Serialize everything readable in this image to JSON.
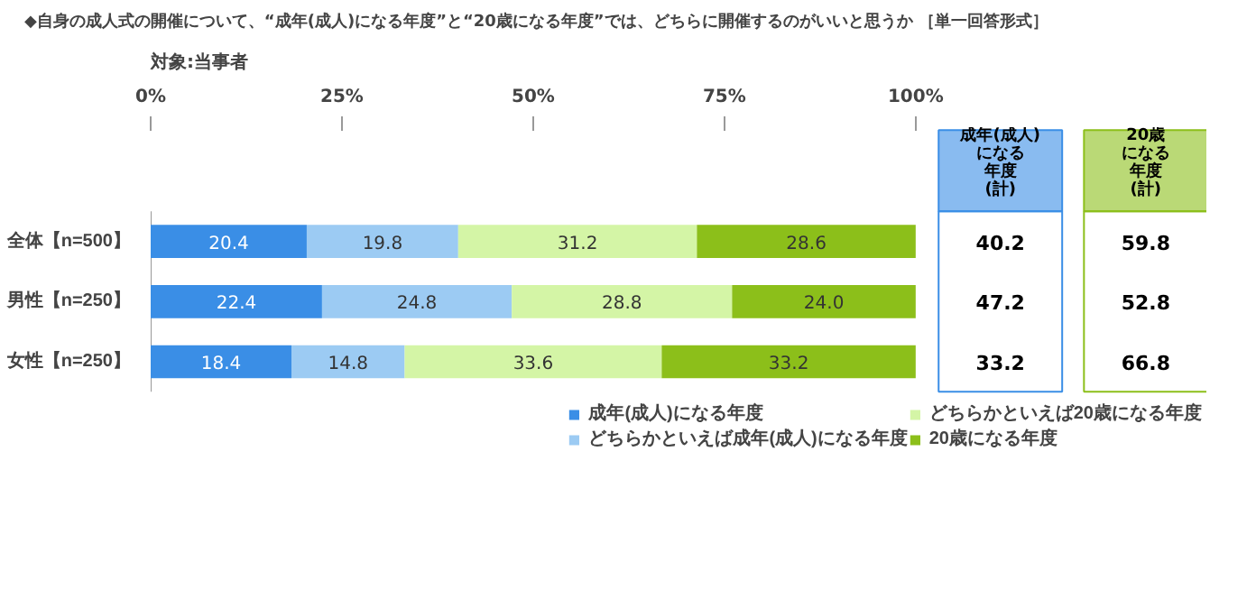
{
  "chart_data": {
    "type": "bar",
    "orientation": "horizontal",
    "stacked": true,
    "title": "◆自身の成人式の開催について、“成年(成人)になる年度”と“20歳になる年度”では、どちらに開催するのがいいと思うか ［単一回答形式］",
    "subtitle": "対象:当事者",
    "categories": [
      "全体【n=500】",
      "男性【n=250】",
      "女性【n=250】"
    ],
    "series": [
      {
        "name": "成年(成人)になる年度",
        "color": "#3a8ee6",
        "values": [
          20.4,
          22.4,
          18.4
        ],
        "value_labels": [
          "20.4",
          "22.4",
          "18.4"
        ]
      },
      {
        "name": "どちらかといえば成年(成人)になる年度",
        "color": "#9ccbf3",
        "values": [
          19.8,
          24.8,
          14.8
        ],
        "value_labels": [
          "19.8",
          "24.8",
          "14.8"
        ]
      },
      {
        "name": "どちらかといえば20歳になる年度",
        "color": "#d4f5a6",
        "values": [
          31.2,
          28.8,
          33.6
        ],
        "value_labels": [
          "31.2",
          "28.8",
          "33.6"
        ]
      },
      {
        "name": "20歳になる年度",
        "color": "#8cbf1a",
        "values": [
          28.6,
          24.0,
          33.2
        ],
        "value_labels": [
          "28.6",
          "24.0",
          "33.2"
        ]
      }
    ],
    "xlim": [
      0,
      100
    ],
    "xticks": [
      {
        "value": 0,
        "label": "0%"
      },
      {
        "value": 25,
        "label": "25%"
      },
      {
        "value": 50,
        "label": "50%"
      },
      {
        "value": 75,
        "label": "75%"
      },
      {
        "value": 100,
        "label": "100%"
      }
    ],
    "legend": "bottom",
    "annotations": [
      "成年(成人)",
      "になる",
      "年度",
      "(計)",
      "20歳",
      "になる",
      "年度",
      "(計)",
      "40.2",
      "59.8",
      "47.2",
      "52.8",
      "33.2",
      "66.8"
    ]
  }
}
